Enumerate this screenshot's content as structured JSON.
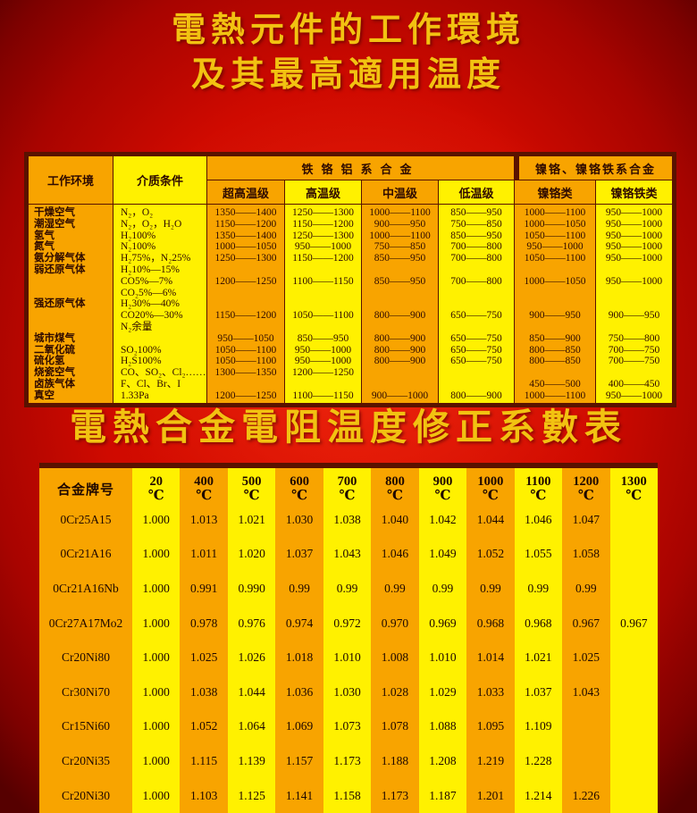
{
  "page": {
    "title_lines": [
      "電熱元件的工作環境",
      "及其最高適用温度"
    ],
    "subtitle": "電熱合金電阻温度修正系數表"
  },
  "colors": {
    "orange": "#F8A400",
    "yellow": "#FFF100",
    "table_border": "#5A1200",
    "title_gold": "#F2C211",
    "background_red": "#CF0A00"
  },
  "env_table": {
    "header": {
      "environment": "工作环境",
      "medium": "介质条件",
      "group_fecral": "铁铬铝系合金",
      "group_nicr": "镍铬、镍铬铁系合金",
      "sub_levels": [
        "超高温级",
        "高温级",
        "中温级",
        "低温级",
        "镍铬类",
        "镍铬铁类"
      ]
    },
    "lines": [
      {
        "env": "干燥空气",
        "medium": "N₂，O₂",
        "values": [
          "1350——1400",
          "1250——1300",
          "1000——1100",
          "850——950",
          "1000——1100",
          "950——1000"
        ]
      },
      {
        "env": "潮湿空气",
        "medium": "N₂，O₂，H₂O",
        "values": [
          "1150——1200",
          "1150——1200",
          "900——950",
          "750——850",
          "1000——1050",
          "950——1000"
        ]
      },
      {
        "env": "氢气",
        "medium": "H₂100%",
        "values": [
          "1350——1400",
          "1250——1300",
          "1000——1100",
          "850——950",
          "1050——1100",
          "950——1000"
        ]
      },
      {
        "env": "氮气",
        "medium": "N₂100%",
        "values": [
          "1000——1050",
          "950——1000",
          "750——850",
          "700——800",
          "950——1000",
          "950——1000"
        ]
      },
      {
        "env": "氨分解气体",
        "medium": "H₂75%，N₂25%",
        "values": [
          "1250——1300",
          "1150——1200",
          "850——950",
          "700——800",
          "1050——1100",
          "950——1000"
        ]
      },
      {
        "env": "弱还原气体",
        "medium": "H₂10%—15%",
        "values": [
          "",
          "",
          "",
          "",
          "",
          ""
        ]
      },
      {
        "env": "",
        "medium": "CO5%—7%",
        "values": [
          "1200——1250",
          "1100——1150",
          "850——950",
          "700——800",
          "1000——1050",
          "950——1000"
        ]
      },
      {
        "env": "",
        "medium": "CO₂5%—6%",
        "values": [
          "",
          "",
          "",
          "",
          "",
          ""
        ]
      },
      {
        "env": "强还原气体",
        "medium": "H₂30%—40%",
        "values": [
          "",
          "",
          "",
          "",
          "",
          ""
        ]
      },
      {
        "env": "",
        "medium": "CO20%—30%",
        "values": [
          "1150——1200",
          "1050——1100",
          "800——900",
          "650——750",
          "900——950",
          "900——950"
        ]
      },
      {
        "env": "",
        "medium": "N₂余量",
        "values": [
          "",
          "",
          "",
          "",
          "",
          ""
        ]
      },
      {
        "env": "城市煤气",
        "medium": "",
        "values": [
          "950——1050",
          "850——950",
          "800——900",
          "650——750",
          "850——900",
          "750——800"
        ]
      },
      {
        "env": "二氧化硫",
        "medium": "SO₂100%",
        "values": [
          "1050——1100",
          "950——1000",
          "800——900",
          "650——750",
          "800——850",
          "700——750"
        ]
      },
      {
        "env": "硫化氢",
        "medium": "H₂S100%",
        "values": [
          "1050——1100",
          "950——1000",
          "800——900",
          "650——750",
          "800——850",
          "700——750"
        ]
      },
      {
        "env": "烧瓷空气",
        "medium": "CO、SO₂、Cl₂……",
        "values": [
          "1300——1350",
          "1200——1250",
          "",
          "",
          "",
          ""
        ]
      },
      {
        "env": "卤族气体",
        "medium": "F、Cl、Br、I",
        "values": [
          "",
          "",
          "",
          "",
          "450——500",
          "400——450"
        ]
      },
      {
        "env": "真空",
        "medium": "1.33Pa",
        "values": [
          "1200——1250",
          "1100——1150",
          "900——1000",
          "800——900",
          "1000——1100",
          "950——1000"
        ]
      }
    ]
  },
  "coef_table": {
    "name_header": "合金牌号",
    "unit": "℃",
    "temps": [
      "20",
      "400",
      "500",
      "600",
      "700",
      "800",
      "900",
      "1000",
      "1100",
      "1200",
      "1300"
    ],
    "rows": [
      {
        "name": "0Cr25A15",
        "values": [
          "1.000",
          "1.013",
          "1.021",
          "1.030",
          "1.038",
          "1.040",
          "1.042",
          "1.044",
          "1.046",
          "1.047",
          ""
        ]
      },
      {
        "name": "0Cr21A16",
        "values": [
          "1.000",
          "1.011",
          "1.020",
          "1.037",
          "1.043",
          "1.046",
          "1.049",
          "1.052",
          "1.055",
          "1.058",
          ""
        ]
      },
      {
        "name": "0Cr21A16Nb",
        "values": [
          "1.000",
          "0.991",
          "0.990",
          "0.99",
          "0.99",
          "0.99",
          "0.99",
          "0.99",
          "0.99",
          "0.99",
          ""
        ]
      },
      {
        "name": "0Cr27A17Mo2",
        "values": [
          "1.000",
          "0.978",
          "0.976",
          "0.974",
          "0.972",
          "0.970",
          "0.969",
          "0.968",
          "0.968",
          "0.967",
          "0.967"
        ]
      },
      {
        "name": "Cr20Ni80",
        "values": [
          "1.000",
          "1.025",
          "1.026",
          "1.018",
          "1.010",
          "1.008",
          "1.010",
          "1.014",
          "1.021",
          "1.025",
          ""
        ]
      },
      {
        "name": "Cr30Ni70",
        "values": [
          "1.000",
          "1.038",
          "1.044",
          "1.036",
          "1.030",
          "1.028",
          "1.029",
          "1.033",
          "1.037",
          "1.043",
          ""
        ]
      },
      {
        "name": "Cr15Ni60",
        "values": [
          "1.000",
          "1.052",
          "1.064",
          "1.069",
          "1.073",
          "1.078",
          "1.088",
          "1.095",
          "1.109",
          "",
          ""
        ]
      },
      {
        "name": "Cr20Ni35",
        "values": [
          "1.000",
          "1.115",
          "1.139",
          "1.157",
          "1.173",
          "1.188",
          "1.208",
          "1.219",
          "1.228",
          "",
          ""
        ]
      },
      {
        "name": "Cr20Ni30",
        "values": [
          "1.000",
          "1.103",
          "1.125",
          "1.141",
          "1.158",
          "1.173",
          "1.187",
          "1.201",
          "1.214",
          "1.226",
          ""
        ]
      }
    ]
  }
}
